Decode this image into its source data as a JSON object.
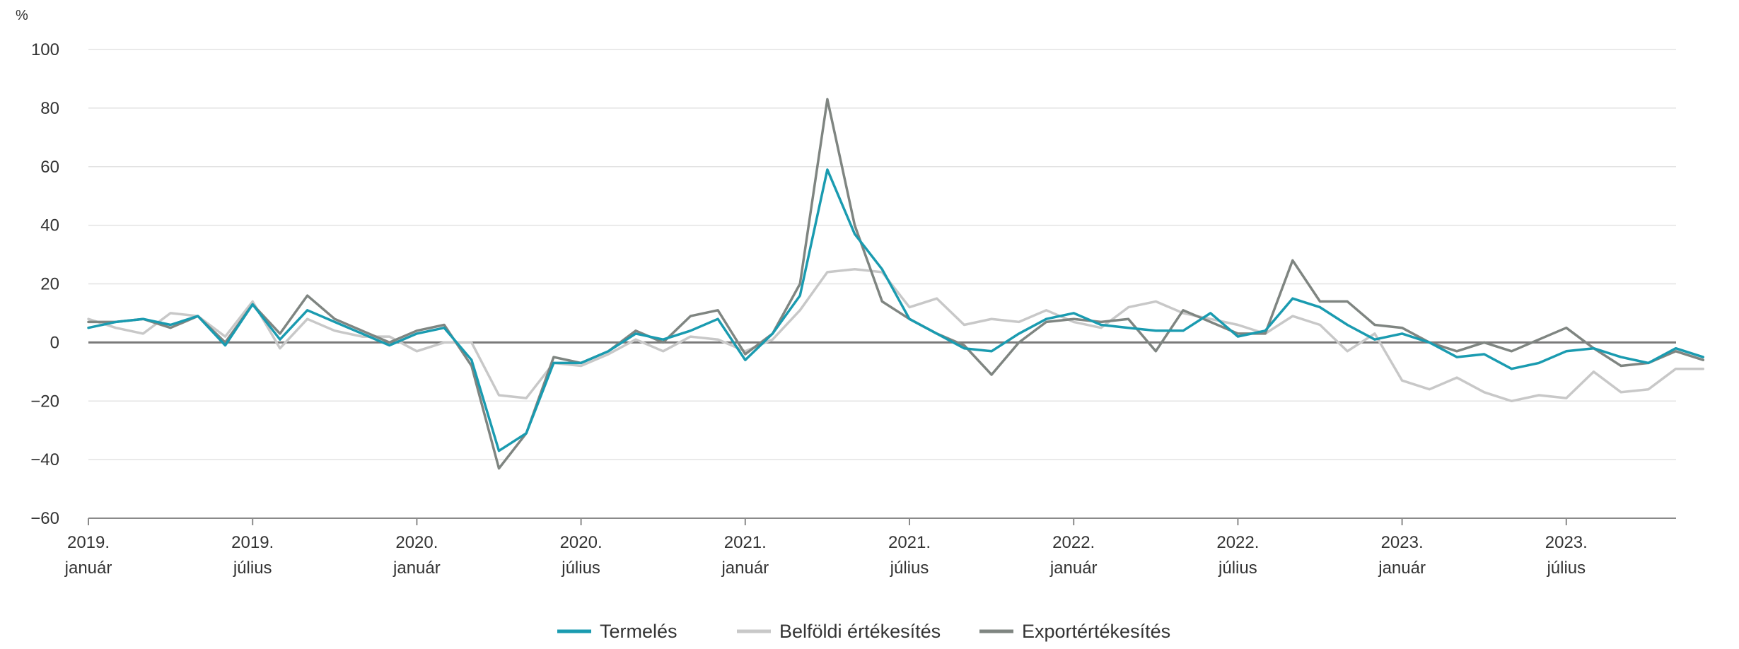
{
  "chart_data": {
    "type": "line",
    "y_unit": "%",
    "ylim": [
      -60,
      100
    ],
    "y_ticks": [
      100,
      80,
      60,
      40,
      20,
      0,
      -20,
      -40,
      -60
    ],
    "grid": true,
    "legend_position": "bottom",
    "x_ticks": [
      {
        "index": 0,
        "year": "2019.",
        "month": "január"
      },
      {
        "index": 6,
        "year": "2019.",
        "month": "július"
      },
      {
        "index": 12,
        "year": "2020.",
        "month": "január"
      },
      {
        "index": 18,
        "year": "2020.",
        "month": "július"
      },
      {
        "index": 24,
        "year": "2021.",
        "month": "január"
      },
      {
        "index": 30,
        "year": "2021.",
        "month": "július"
      },
      {
        "index": 36,
        "year": "2022.",
        "month": "január"
      },
      {
        "index": 42,
        "year": "2022.",
        "month": "július"
      },
      {
        "index": 48,
        "year": "2023.",
        "month": "január"
      },
      {
        "index": 54,
        "year": "2023.",
        "month": "július"
      }
    ],
    "series": [
      {
        "name": "Termelés",
        "color": "#1a9bb0",
        "values": [
          5,
          7,
          8,
          6,
          9,
          -1,
          13,
          1,
          11,
          7,
          3,
          -1,
          3,
          5,
          -6,
          -37,
          -31,
          -7,
          -7,
          -3,
          3,
          1,
          4,
          8,
          -6,
          3,
          16,
          59,
          37,
          25,
          8,
          3,
          -2,
          -3,
          3,
          8,
          10,
          6,
          5,
          4,
          4,
          10,
          2,
          4,
          15,
          12,
          6,
          1,
          3,
          0,
          -5,
          -4,
          -9,
          -7,
          -3,
          -2,
          -5,
          -7,
          -2,
          -5
        ]
      },
      {
        "name": "Belföldi értékesítés",
        "color": "#c8c8c8",
        "values": [
          8,
          5,
          3,
          10,
          9,
          2,
          14,
          -2,
          8,
          4,
          2,
          2,
          -3,
          0,
          0,
          -18,
          -19,
          -7,
          -8,
          -4,
          1,
          -3,
          2,
          1,
          -3,
          1,
          11,
          24,
          25,
          24,
          12,
          15,
          6,
          8,
          7,
          11,
          7,
          5,
          12,
          14,
          10,
          8,
          6,
          3,
          9,
          6,
          -3,
          3,
          -13,
          -16,
          -12,
          -17,
          -20,
          -18,
          -19,
          -10,
          -17,
          -16,
          -9,
          -9
        ]
      },
      {
        "name": "Exportértékesítés",
        "color": "#7f8581",
        "values": [
          7,
          7,
          8,
          5,
          9,
          0,
          13,
          3,
          16,
          8,
          4,
          0,
          4,
          6,
          -8,
          -43,
          -31,
          -5,
          -7,
          -3,
          4,
          0,
          9,
          11,
          -4,
          3,
          20,
          83,
          40,
          14,
          8,
          3,
          -1,
          -11,
          0,
          7,
          8,
          7,
          8,
          -3,
          11,
          7,
          3,
          3,
          28,
          14,
          14,
          6,
          5,
          0,
          -3,
          0,
          -3,
          1,
          5,
          -2,
          -8,
          -7,
          -3,
          -6
        ]
      }
    ]
  }
}
